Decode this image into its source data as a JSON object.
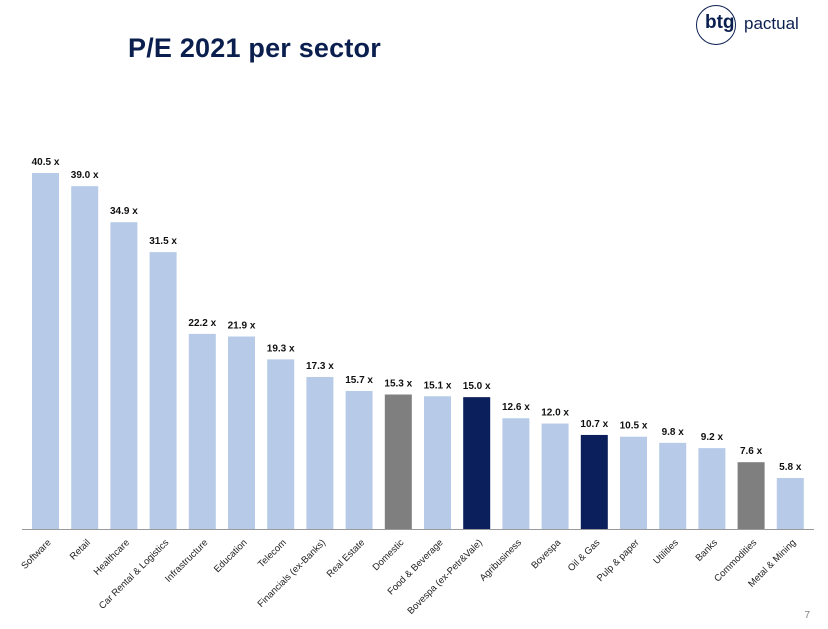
{
  "slide": {
    "title": "P/E 2021 per sector",
    "page_number": "7"
  },
  "logo": {
    "mark": "btg",
    "word": "pactual"
  },
  "chart_data": {
    "type": "bar",
    "title": "P/E 2021 per sector",
    "xlabel": "",
    "ylabel": "",
    "value_suffix": " x",
    "ylim": [
      0,
      40.5
    ],
    "grid": false,
    "categories": [
      "Software",
      "Retail",
      "Healthcare",
      "Car Rental & Logistics",
      "Infrastructure",
      "Education",
      "Telecom",
      "Financials (ex-Banks)",
      "Real Estate",
      "Domestic",
      "Food & Beverage",
      "Bovespa (ex-Petr&Vale)",
      "Agribusiness",
      "Bovespa",
      "Oil & Gas",
      "Pulp & paper",
      "Utilities",
      "Banks",
      "Commodities",
      "Metal & Mining"
    ],
    "values": [
      40.5,
      39.0,
      34.9,
      31.5,
      22.2,
      21.9,
      19.3,
      17.3,
      15.7,
      15.3,
      15.1,
      15.0,
      12.6,
      12.0,
      10.7,
      10.5,
      9.8,
      9.2,
      7.6,
      5.8
    ],
    "labels": [
      "40.5 x",
      "39.0 x",
      "34.9 x",
      "31.5 x",
      "22.2 x",
      "21.9 x",
      "19.3 x",
      "17.3 x",
      "15.7 x",
      "15.3 x",
      "15.1 x",
      "15.0 x",
      "12.6 x",
      "12.0 x",
      "10.7 x",
      "10.5 x",
      "9.8 x",
      "9.2 x",
      "7.6 x",
      "5.8 x"
    ],
    "bar_colors": [
      "#b7cbe8",
      "#b7cbe8",
      "#b7cbe8",
      "#b7cbe8",
      "#b7cbe8",
      "#b7cbe8",
      "#b7cbe8",
      "#b7cbe8",
      "#b7cbe8",
      "#7f7f7f",
      "#b7cbe8",
      "#0b1f5c",
      "#b7cbe8",
      "#b7cbe8",
      "#0b1f5c",
      "#b7cbe8",
      "#b7cbe8",
      "#b7cbe8",
      "#7f7f7f",
      "#b7cbe8"
    ]
  }
}
